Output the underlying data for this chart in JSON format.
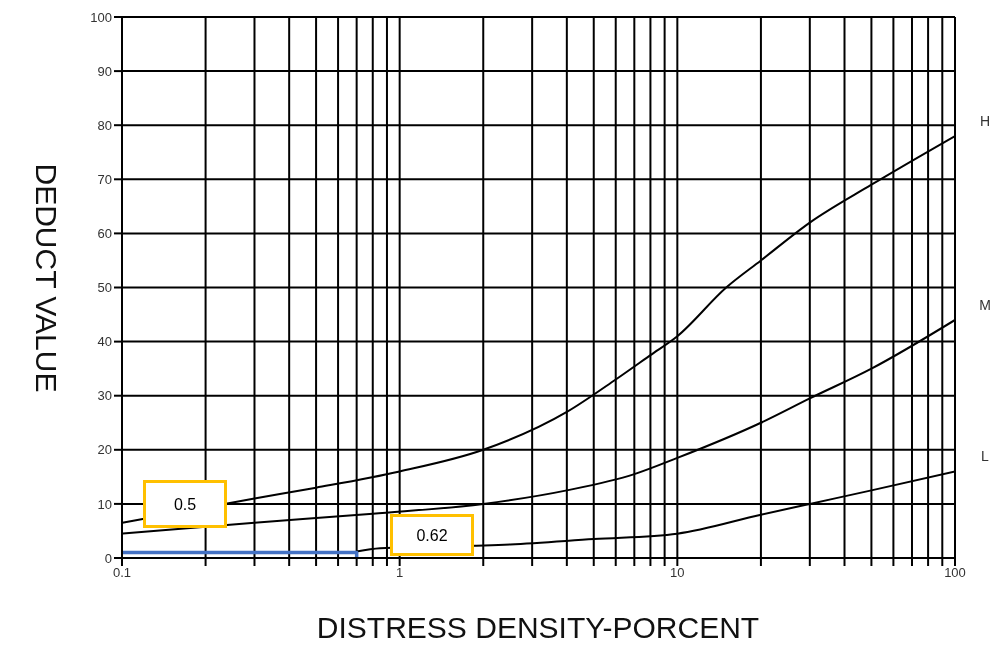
{
  "chart_data": {
    "type": "line",
    "xlabel": "DISTRESS DENSITY-PORCENT",
    "ylabel": "DEDUCT VALUE",
    "log": "x",
    "grid": true,
    "marker": "none",
    "line_style": "solid",
    "xlim": [
      0.1,
      100
    ],
    "ylim": [
      0,
      100
    ],
    "xticks": [
      0.1,
      {
        "value": 0.2,
        "label": null
      },
      {
        "value": 0.3,
        "label": null
      },
      {
        "value": 0.4,
        "label": null
      },
      {
        "value": 0.5,
        "label": null
      },
      {
        "value": 0.6,
        "label": null
      },
      {
        "value": 0.7,
        "label": null
      },
      {
        "value": 0.8,
        "label": null
      },
      {
        "value": 0.9,
        "label": null
      },
      1,
      {
        "value": 2,
        "label": null
      },
      {
        "value": 3,
        "label": null
      },
      {
        "value": 4,
        "label": null
      },
      {
        "value": 5,
        "label": null
      },
      {
        "value": 6,
        "label": null
      },
      {
        "value": 7,
        "label": null
      },
      {
        "value": 8,
        "label": null
      },
      {
        "value": 9,
        "label": null
      },
      10,
      {
        "value": 20,
        "label": null
      },
      {
        "value": 30,
        "label": null
      },
      {
        "value": 40,
        "label": null
      },
      {
        "value": 50,
        "label": null
      },
      {
        "value": 60,
        "label": null
      },
      {
        "value": 70,
        "label": null
      },
      {
        "value": 80,
        "label": null
      },
      {
        "value": 90,
        "label": null
      },
      100
    ],
    "yticks": [
      0,
      10,
      20,
      30,
      40,
      50,
      60,
      70,
      80,
      90,
      100
    ],
    "series": [
      {
        "name": "H",
        "color": "#000000",
        "x": [
          0.1,
          0.3,
          0.5,
          1,
          2,
          4,
          6,
          8,
          10,
          15,
          20,
          30,
          50,
          100
        ],
        "values": [
          6.5,
          11,
          13,
          16,
          20,
          27,
          33,
          37.5,
          41,
          50,
          55,
          62,
          69,
          78
        ]
      },
      {
        "name": "M",
        "color": "#000000",
        "x": [
          0.1,
          0.3,
          0.8,
          2,
          4,
          7,
          10,
          20,
          30,
          50,
          100
        ],
        "values": [
          4.5,
          6.5,
          8.2,
          10,
          12.5,
          15.5,
          18.5,
          25,
          29.5,
          35,
          44
        ]
      },
      {
        "name": "L",
        "color": "#000000",
        "x": [
          0.7,
          0.85,
          2.5,
          5,
          10,
          20,
          30,
          50,
          100
        ],
        "values": [
          1.2,
          1.8,
          2.5,
          3.5,
          4.5,
          8,
          10,
          12.5,
          16
        ]
      },
      {
        "color": "#4472c4",
        "x": [
          0.1,
          0.7,
          0.7
        ],
        "values": [
          1,
          1,
          0
        ]
      }
    ],
    "annotations": [
      "0.5",
      "0.62"
    ]
  }
}
